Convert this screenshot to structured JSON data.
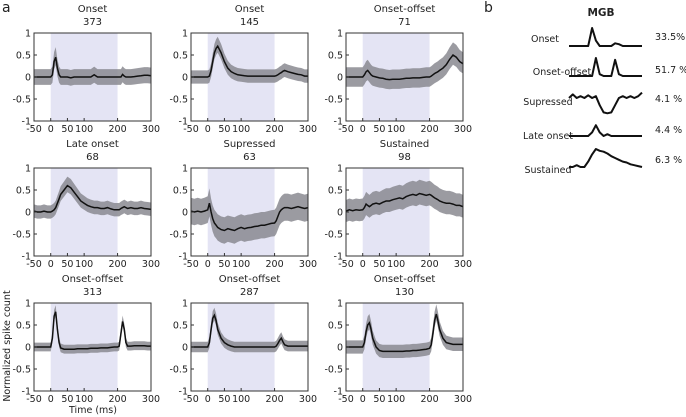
{
  "figure": {
    "panel_a_letter": "a",
    "panel_b_letter": "b"
  },
  "chart_data": [
    {
      "type": "line",
      "panel": "a",
      "xlabel": "Time (ms)",
      "ylabel": "Normalized spike count",
      "xlim": [
        -50,
        300
      ],
      "ylim": [
        -1,
        1
      ],
      "xticks": [
        -50,
        0,
        50,
        100,
        200,
        300
      ],
      "yticks": [
        1,
        0.5,
        0,
        -0.5,
        -1
      ],
      "ytick_labels": [
        "1",
        "0.5",
        "0",
        "-0.5",
        "-1"
      ],
      "stimulus_window": [
        0,
        200
      ],
      "colors": {
        "stimulus": "#e4e4f4",
        "band": "#8a8a90",
        "mean": "#111111"
      },
      "x": [
        -50,
        -40,
        -30,
        -20,
        -10,
        0,
        5,
        10,
        15,
        20,
        25,
        30,
        40,
        50,
        60,
        70,
        80,
        90,
        100,
        110,
        120,
        130,
        140,
        150,
        160,
        170,
        180,
        190,
        200,
        205,
        210,
        215,
        220,
        225,
        230,
        240,
        250,
        260,
        270,
        280,
        290,
        300
      ],
      "subplots": [
        {
          "title": "Onset",
          "count": "373",
          "sd": 0.18,
          "mean": [
            0,
            0,
            0,
            0,
            0,
            0,
            0.05,
            0.35,
            0.45,
            0.2,
            0.05,
            0,
            0,
            0,
            -0.02,
            0,
            0,
            0,
            0,
            0,
            0,
            0.05,
            0,
            0,
            0,
            0,
            0,
            0,
            0,
            0,
            0,
            0.06,
            0.02,
            0,
            0,
            0,
            0.01,
            0.02,
            0.03,
            0.04,
            0.04,
            0.03
          ]
        },
        {
          "title": "Onset",
          "count": "145",
          "sd": 0.15,
          "mean": [
            0,
            0,
            0,
            0,
            0,
            0,
            0.02,
            0.15,
            0.35,
            0.55,
            0.65,
            0.7,
            0.55,
            0.35,
            0.2,
            0.12,
            0.08,
            0.05,
            0.04,
            0.03,
            0.02,
            0.02,
            0.02,
            0.02,
            0.02,
            0.02,
            0.02,
            0.02,
            0.02,
            0.03,
            0.05,
            0.08,
            0.1,
            0.13,
            0.15,
            0.12,
            0.1,
            0.08,
            0.06,
            0.05,
            0.02,
            0.02
          ]
        },
        {
          "title": "Onset-offset",
          "count": "71",
          "sd": 0.22,
          "mean": [
            0,
            0,
            0,
            0,
            0,
            0,
            0.05,
            0.12,
            0.15,
            0.1,
            0.05,
            0.02,
            0,
            -0.02,
            -0.03,
            -0.05,
            -0.06,
            -0.05,
            -0.05,
            -0.05,
            -0.04,
            -0.03,
            -0.03,
            -0.02,
            -0.02,
            -0.02,
            -0.01,
            0,
            0,
            0.02,
            0.05,
            0.08,
            0.1,
            0.12,
            0.15,
            0.2,
            0.28,
            0.4,
            0.5,
            0.45,
            0.35,
            0.3
          ]
        },
        {
          "title": "Late onset",
          "count": "68",
          "sd": 0.15,
          "mean": [
            0.02,
            0,
            0,
            0.02,
            0,
            0,
            0.02,
            0.05,
            0.1,
            0.2,
            0.3,
            0.4,
            0.5,
            0.6,
            0.55,
            0.45,
            0.35,
            0.25,
            0.2,
            0.15,
            0.12,
            0.1,
            0.1,
            0.08,
            0.08,
            0.1,
            0.07,
            0.05,
            0.05,
            0.05,
            0.08,
            0.1,
            0.12,
            0.1,
            0.08,
            0.1,
            0.08,
            0.08,
            0.1,
            0.08,
            0.07,
            0.06
          ]
        },
        {
          "title": "Supressed",
          "count": "63",
          "sd": 0.3,
          "mean": [
            0.02,
            0,
            0.02,
            0,
            0.02,
            0.05,
            0.2,
            0,
            -0.15,
            -0.25,
            -0.3,
            -0.35,
            -0.4,
            -0.42,
            -0.38,
            -0.4,
            -0.42,
            -0.38,
            -0.35,
            -0.38,
            -0.36,
            -0.35,
            -0.33,
            -0.32,
            -0.3,
            -0.3,
            -0.28,
            -0.26,
            -0.25,
            -0.2,
            -0.1,
            0,
            0.05,
            0.08,
            0.1,
            0.1,
            0.08,
            0.1,
            0.12,
            0.1,
            0.08,
            0.1
          ]
        },
        {
          "title": "Sustained",
          "count": "98",
          "sd": 0.25,
          "mean": [
            0.02,
            0.05,
            0.03,
            0.05,
            0.04,
            0.05,
            0.1,
            0.18,
            0.15,
            0.12,
            0.15,
            0.18,
            0.2,
            0.18,
            0.22,
            0.25,
            0.25,
            0.28,
            0.3,
            0.32,
            0.3,
            0.35,
            0.38,
            0.4,
            0.38,
            0.42,
            0.4,
            0.38,
            0.4,
            0.38,
            0.35,
            0.32,
            0.3,
            0.28,
            0.25,
            0.22,
            0.2,
            0.2,
            0.18,
            0.15,
            0.15,
            0.12
          ]
        },
        {
          "title": "Onset-offset",
          "count": "313",
          "sd": 0.1,
          "mean": [
            0,
            0,
            0,
            0,
            0,
            0,
            0.2,
            0.7,
            0.8,
            0.4,
            0.1,
            -0.02,
            -0.05,
            -0.05,
            -0.05,
            -0.05,
            -0.04,
            -0.04,
            -0.04,
            -0.04,
            -0.03,
            -0.03,
            -0.03,
            -0.02,
            -0.02,
            -0.02,
            -0.01,
            0,
            0,
            0.02,
            0.3,
            0.58,
            0.4,
            0.1,
            0.02,
            0.02,
            0.03,
            0.03,
            0.03,
            0.03,
            0.02,
            0.02
          ]
        },
        {
          "title": "Onset-offset",
          "count": "287",
          "sd": 0.12,
          "mean": [
            0,
            0,
            0,
            0,
            0,
            0,
            0.1,
            0.4,
            0.65,
            0.72,
            0.6,
            0.4,
            0.2,
            0.1,
            0.05,
            0.02,
            0,
            0,
            0,
            0,
            0,
            0,
            0,
            0,
            0,
            0,
            0,
            0,
            0,
            0.02,
            0.08,
            0.15,
            0.2,
            0.12,
            0.05,
            0.02,
            0.02,
            0.02,
            0.02,
            0.02,
            0.02,
            0.02
          ]
        },
        {
          "title": "Onset-offset",
          "count": "130",
          "sd": 0.15,
          "mean": [
            0,
            0,
            0,
            0,
            0,
            0,
            0.1,
            0.35,
            0.5,
            0.55,
            0.4,
            0.2,
            0,
            -0.08,
            -0.1,
            -0.1,
            -0.1,
            -0.1,
            -0.1,
            -0.1,
            -0.1,
            -0.09,
            -0.09,
            -0.08,
            -0.08,
            -0.07,
            -0.06,
            -0.05,
            -0.03,
            0.05,
            0.3,
            0.6,
            0.75,
            0.6,
            0.4,
            0.2,
            0.1,
            0.08,
            0.06,
            0.06,
            0.06,
            0.06
          ]
        }
      ]
    },
    {
      "type": "line",
      "panel": "b",
      "title": "MGB",
      "rows": [
        {
          "label": "Onset",
          "percent": "33.5%",
          "trace": [
            0,
            0,
            0,
            0,
            0,
            0,
            1,
            0.3,
            0,
            0,
            0,
            0,
            0.15,
            0.1,
            0,
            0,
            0,
            0,
            0,
            0
          ]
        },
        {
          "label": "Onset-offset",
          "percent": "51.7 %",
          "trace": [
            0,
            0,
            0,
            0,
            0,
            0,
            0,
            1,
            0.1,
            0,
            0,
            0,
            0.9,
            0.1,
            0,
            0,
            0,
            0,
            0,
            0
          ]
        },
        {
          "label": "Supressed",
          "percent": "4.1 %",
          "trace": [
            0,
            0.2,
            0,
            0.1,
            0,
            0.15,
            0,
            0.1,
            -0.4,
            -0.8,
            -0.85,
            -0.8,
            -0.4,
            0,
            0.1,
            0,
            0.1,
            0,
            0.1,
            0.3
          ]
        },
        {
          "label": "Late onset",
          "percent": "4.4 %",
          "trace": [
            0,
            0,
            0,
            0,
            0,
            0,
            0.2,
            0.6,
            0.2,
            0,
            0.1,
            0,
            0,
            0,
            0,
            0,
            0,
            0,
            0,
            0
          ]
        },
        {
          "label": "Sustained",
          "percent": "6.3 %",
          "trace": [
            0,
            0,
            0.1,
            0,
            0,
            0.3,
            0.7,
            1,
            0.9,
            0.85,
            0.75,
            0.6,
            0.5,
            0.4,
            0.3,
            0.25,
            0.15,
            0.1,
            0.05,
            0
          ]
        }
      ]
    }
  ]
}
